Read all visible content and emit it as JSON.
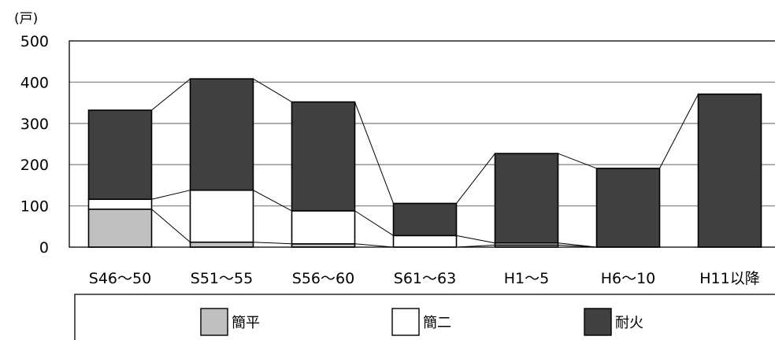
{
  "chart_data": {
    "type": "bar",
    "stacked": true,
    "unit_label": "(戸)",
    "categories": [
      "S46～50",
      "S51～55",
      "S56～60",
      "S61～63",
      "H1～5",
      "H6～10",
      "H11以降"
    ],
    "series": [
      {
        "name": "簡平",
        "color": "#c0c0c0",
        "values": [
          92,
          12,
          8,
          0,
          5,
          0,
          0
        ]
      },
      {
        "name": "簡二",
        "color": "#ffffff",
        "values": [
          24,
          126,
          80,
          28,
          5,
          0,
          0
        ]
      },
      {
        "name": "耐火",
        "color": "#404040",
        "values": [
          216,
          270,
          264,
          78,
          217,
          191,
          371
        ]
      }
    ],
    "ylim": [
      0,
      500
    ],
    "yticks": [
      0,
      100,
      200,
      300,
      400,
      500
    ],
    "grid": true,
    "connector_lines": true,
    "legend_position": "bottom"
  }
}
